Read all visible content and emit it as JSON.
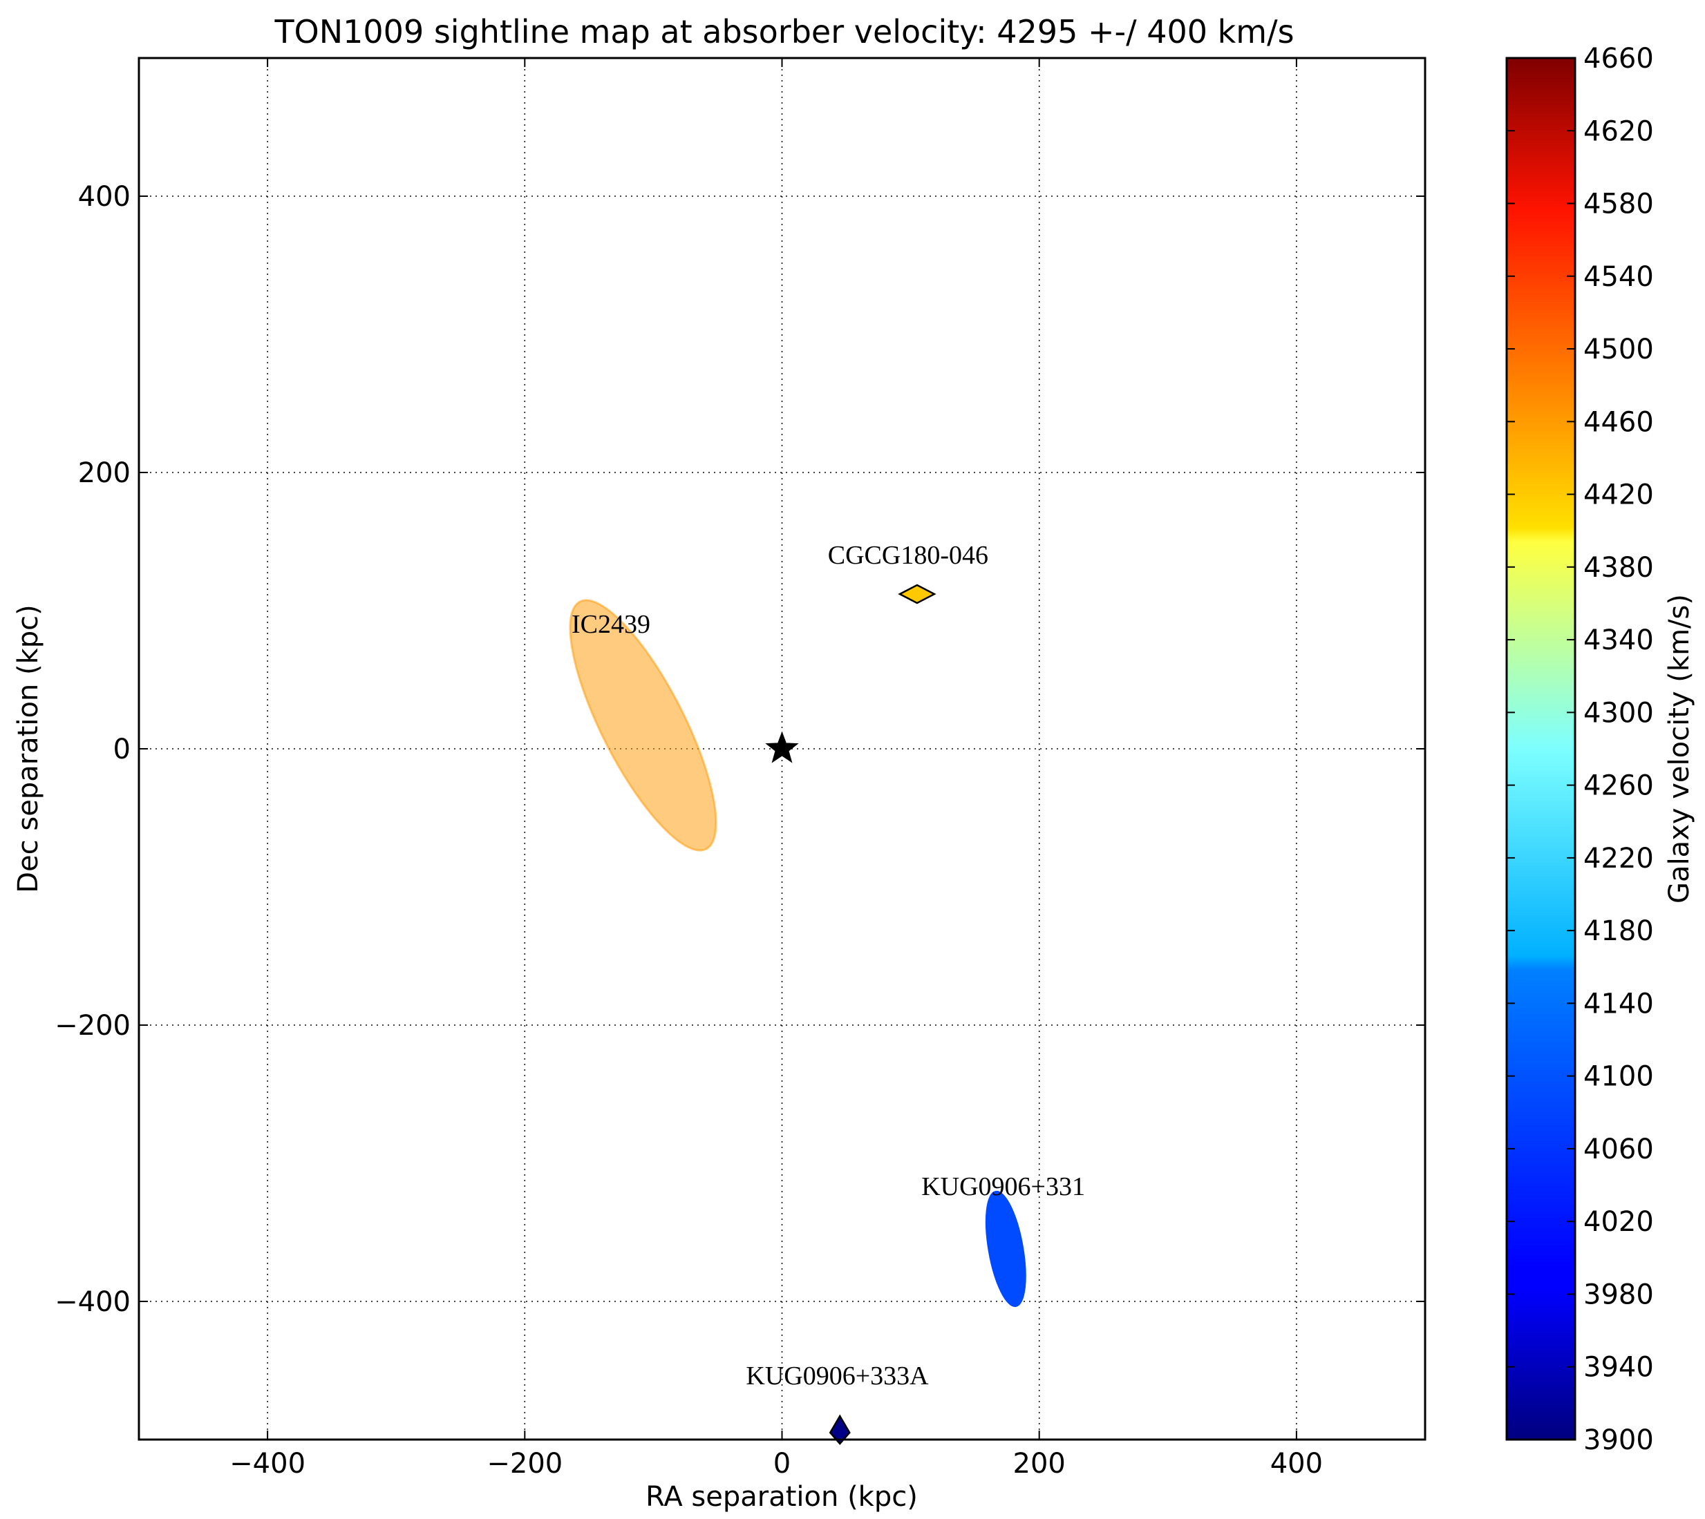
{
  "chart_data": {
    "type": "scatter",
    "title": "TON1009 sightline map at absorber velocity: 4295 +-/ 400 km/s",
    "xlabel": "RA separation (kpc)",
    "ylabel": "Dec separation (kpc)",
    "xlim": [
      -500,
      500
    ],
    "ylim": [
      -500,
      500
    ],
    "xticks": [
      -400,
      -200,
      0,
      200,
      400
    ],
    "yticks": [
      -400,
      -200,
      0,
      200,
      400
    ],
    "xtick_labels": [
      "−400",
      "−200",
      "0",
      "200",
      "400"
    ],
    "ytick_labels": [
      "−400",
      "−200",
      "0",
      "200",
      "400"
    ],
    "grid": true,
    "sightline": {
      "x": 0,
      "y": 0,
      "marker": "star",
      "color": "#000000"
    },
    "galaxies": [
      {
        "name": "IC2439",
        "x": -108,
        "y": 17,
        "velocity": 4470,
        "shape": "ellipse",
        "major_kpc": 108,
        "minor_kpc": 32,
        "angle_deg": 63,
        "alpha": 0.5,
        "label_x": -133,
        "label_y": 84
      },
      {
        "name": "CGCG180-046",
        "x": 105,
        "y": 112,
        "velocity": 4430,
        "shape": "diamond",
        "label_x": 98,
        "label_y": 134
      },
      {
        "name": "KUG0906+331",
        "x": 174,
        "y": -362,
        "velocity": 4050,
        "shape": "ellipse",
        "major_kpc": 45,
        "minor_kpc": 13,
        "angle_deg": 80,
        "alpha": 1.0,
        "label_x": 172,
        "label_y": -323
      },
      {
        "name": "KUG0906+333A",
        "x": 45,
        "y": -495,
        "velocity": 3905,
        "shape": "diamond",
        "label_x": 43,
        "label_y": -460
      }
    ],
    "colorbar": {
      "label": "Galaxy velocity (km/s)",
      "min": 3900,
      "max": 4660,
      "ticks": [
        3900,
        3940,
        3980,
        4020,
        4060,
        4100,
        4140,
        4180,
        4220,
        4260,
        4300,
        4340,
        4380,
        4420,
        4460,
        4500,
        4540,
        4580,
        4620,
        4660
      ],
      "colormap": "jet"
    }
  }
}
